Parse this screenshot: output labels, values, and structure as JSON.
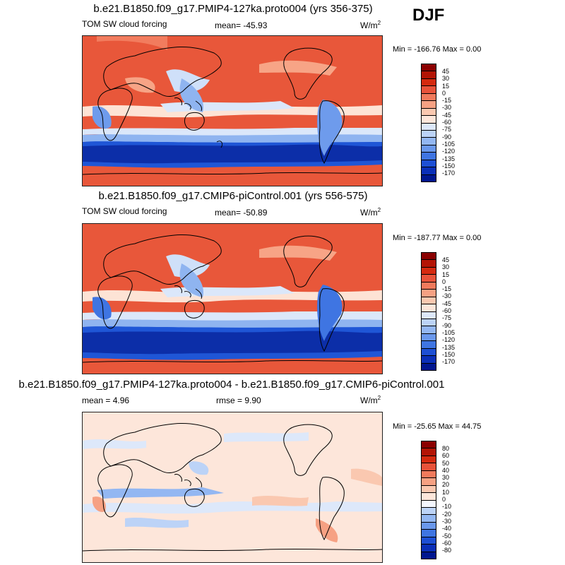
{
  "season": "DJF",
  "panels": [
    {
      "title": "b.e21.B1850.f09_g17.PMIP4-127ka.proto004 (yrs 356-375)",
      "variable": "TOM SW cloud forcing",
      "stats": "mean= -45.93",
      "stats2": "",
      "units_base": "W/m",
      "units_exp": "2",
      "minmax": "Min = -166.76 Max =   0.00",
      "colorbar_labels": [
        "45",
        "30",
        "15",
        "0",
        "-15",
        "-30",
        "-45",
        "-60",
        "-75",
        "-90",
        "-105",
        "-120",
        "-135",
        "-150",
        "-170"
      ],
      "colorbar_colors": [
        "#8b0000",
        "#b31405",
        "#d42a0f",
        "#e8533a",
        "#f07a5c",
        "#f6a183",
        "#fac8b0",
        "#fde6da",
        "#dde8fa",
        "#bcd3f7",
        "#93b7f2",
        "#6a98ec",
        "#3f75e2",
        "#1d4fd4",
        "#0a2fb8",
        "#00168f"
      ]
    },
    {
      "title": "b.e21.B1850.f09_g17.CMIP6-piControl.001 (yrs 556-575)",
      "variable": "TOM SW cloud forcing",
      "stats": "mean= -50.89",
      "stats2": "",
      "units_base": "W/m",
      "units_exp": "2",
      "minmax": "Min = -187.77 Max =   0.00",
      "colorbar_labels": [
        "45",
        "30",
        "15",
        "0",
        "-15",
        "-30",
        "-45",
        "-60",
        "-75",
        "-90",
        "-105",
        "-120",
        "-135",
        "-150",
        "-170"
      ],
      "colorbar_colors": [
        "#8b0000",
        "#b31405",
        "#d42a0f",
        "#e8533a",
        "#f07a5c",
        "#f6a183",
        "#fac8b0",
        "#fde6da",
        "#dde8fa",
        "#bcd3f7",
        "#93b7f2",
        "#6a98ec",
        "#3f75e2",
        "#1d4fd4",
        "#0a2fb8",
        "#00168f"
      ]
    },
    {
      "title": "b.e21.B1850.f09_g17.PMIP4-127ka.proto004 - b.e21.B1850.f09_g17.CMIP6-piControl.001",
      "variable": "",
      "stats": "mean =   4.96",
      "stats2": "rmse =   9.90",
      "units_base": "W/m",
      "units_exp": "2",
      "minmax": "Min = -25.65 Max =  44.75",
      "colorbar_labels": [
        "80",
        "60",
        "50",
        "40",
        "30",
        "20",
        "10",
        "0",
        "-10",
        "-20",
        "-30",
        "-40",
        "-50",
        "-60",
        "-80"
      ],
      "colorbar_colors": [
        "#8b0000",
        "#b31405",
        "#d42a0f",
        "#e8533a",
        "#f07a5c",
        "#f6a183",
        "#fac8b0",
        "#fde6da",
        "#f4f7fe",
        "#bcd3f7",
        "#93b7f2",
        "#6a98ec",
        "#3f75e2",
        "#1d4fd4",
        "#0a2fb8",
        "#00168f"
      ]
    }
  ]
}
